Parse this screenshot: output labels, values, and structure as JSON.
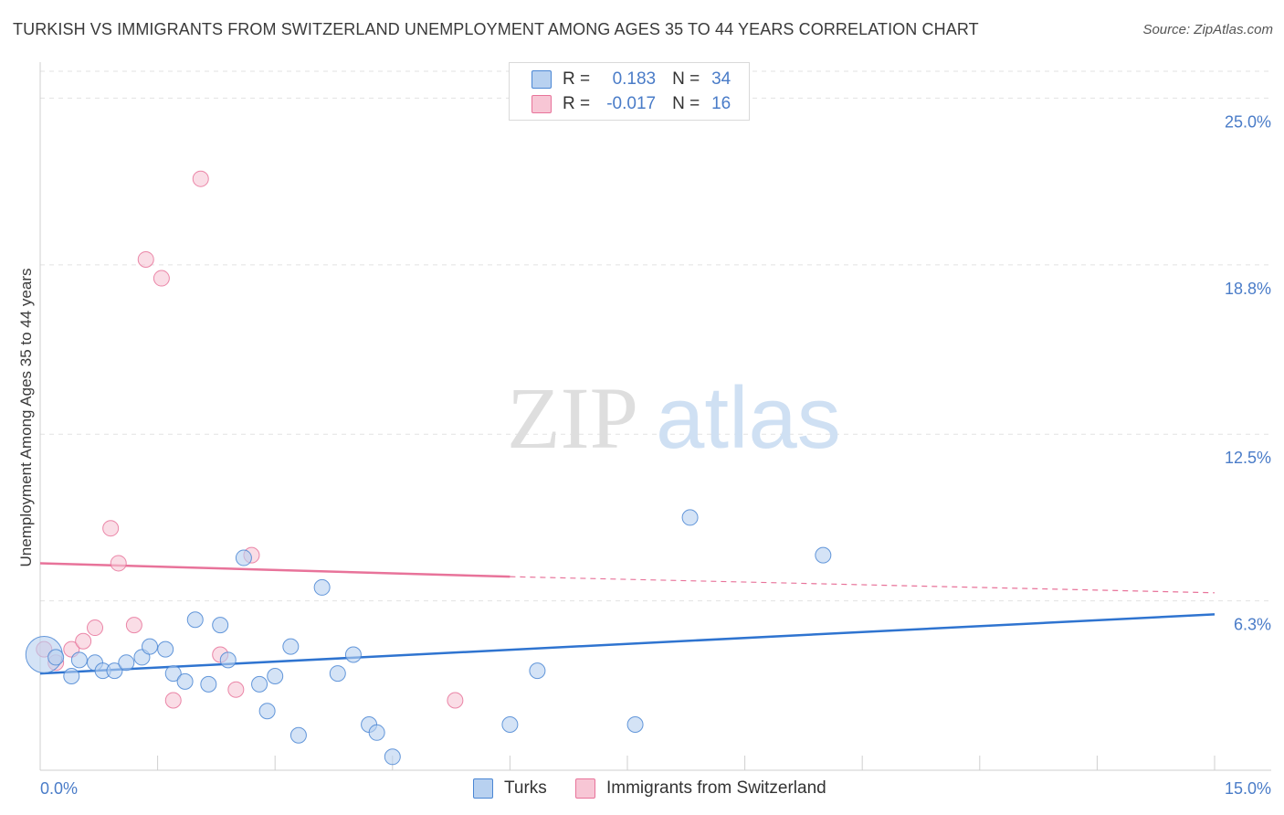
{
  "title": "TURKISH VS IMMIGRANTS FROM SWITZERLAND UNEMPLOYMENT AMONG AGES 35 TO 44 YEARS CORRELATION CHART",
  "source": "Source: ZipAtlas.com",
  "watermark": {
    "zip": "ZIP",
    "atlas": "atlas"
  },
  "colors": {
    "turks": "#4a86d4",
    "turks_fill": "#b8d1f0",
    "swiss": "#e8739a",
    "swiss_fill": "#f7c6d5",
    "accent_text": "#4a7cc8"
  },
  "legend": {
    "rows": [
      {
        "r_label": "R =",
        "r_value": "0.183",
        "n_label": "N =",
        "n_value": "34"
      },
      {
        "r_label": "R =",
        "r_value": "-0.017",
        "n_label": "N =",
        "n_value": "16"
      }
    ]
  },
  "bottom_legend": {
    "turks": "Turks",
    "swiss": "Immigrants from Switzerland"
  },
  "chart_data": {
    "type": "scatter",
    "title": "TURKISH VS IMMIGRANTS FROM SWITZERLAND UNEMPLOYMENT AMONG AGES 35 TO 44 YEARS CORRELATION CHART",
    "xlabel": "",
    "ylabel": "Unemployment Among Ages 35 to 44 years",
    "xlim": [
      0,
      15
    ],
    "ylim": [
      0,
      26
    ],
    "x_tick_labels": [
      "0.0%",
      "15.0%"
    ],
    "y_ticks": [
      6.3,
      12.5,
      18.8,
      25.0
    ],
    "y_tick_labels": [
      "6.3%",
      "12.5%",
      "18.8%",
      "25.0%"
    ],
    "grid": true,
    "series": [
      {
        "name": "Turks",
        "r": 0.183,
        "n": 34,
        "trend": {
          "x": [
            0,
            15
          ],
          "y": [
            3.6,
            5.8
          ]
        },
        "points": [
          {
            "x": 0.05,
            "y": 4.3,
            "big": true
          },
          {
            "x": 0.2,
            "y": 4.2
          },
          {
            "x": 0.4,
            "y": 3.5
          },
          {
            "x": 0.5,
            "y": 4.1
          },
          {
            "x": 0.7,
            "y": 4.0
          },
          {
            "x": 0.8,
            "y": 3.7
          },
          {
            "x": 0.95,
            "y": 3.7
          },
          {
            "x": 1.1,
            "y": 4.0
          },
          {
            "x": 1.3,
            "y": 4.2
          },
          {
            "x": 1.4,
            "y": 4.6
          },
          {
            "x": 1.6,
            "y": 4.5
          },
          {
            "x": 1.7,
            "y": 3.6
          },
          {
            "x": 1.85,
            "y": 3.3
          },
          {
            "x": 1.98,
            "y": 5.6
          },
          {
            "x": 2.15,
            "y": 3.2
          },
          {
            "x": 2.3,
            "y": 5.4
          },
          {
            "x": 2.4,
            "y": 4.1
          },
          {
            "x": 2.6,
            "y": 7.9
          },
          {
            "x": 2.8,
            "y": 3.2
          },
          {
            "x": 2.9,
            "y": 2.2
          },
          {
            "x": 3.0,
            "y": 3.5
          },
          {
            "x": 3.2,
            "y": 4.6
          },
          {
            "x": 3.3,
            "y": 1.3
          },
          {
            "x": 3.6,
            "y": 6.8
          },
          {
            "x": 3.8,
            "y": 3.6
          },
          {
            "x": 4.0,
            "y": 4.3
          },
          {
            "x": 4.2,
            "y": 1.7
          },
          {
            "x": 4.3,
            "y": 1.4
          },
          {
            "x": 4.5,
            "y": 0.5
          },
          {
            "x": 6.0,
            "y": 1.7
          },
          {
            "x": 6.35,
            "y": 3.7
          },
          {
            "x": 7.6,
            "y": 1.7
          },
          {
            "x": 8.3,
            "y": 9.4
          },
          {
            "x": 10.0,
            "y": 8.0
          }
        ]
      },
      {
        "name": "Immigrants from Switzerland",
        "r": -0.017,
        "n": 16,
        "trend": {
          "x": [
            0,
            6.0,
            15
          ],
          "y": [
            7.7,
            7.2,
            6.6
          ],
          "solid_until": 6.0
        },
        "points": [
          {
            "x": 0.05,
            "y": 4.5
          },
          {
            "x": 0.2,
            "y": 4.0
          },
          {
            "x": 0.4,
            "y": 4.5
          },
          {
            "x": 0.55,
            "y": 4.8
          },
          {
            "x": 0.7,
            "y": 5.3
          },
          {
            "x": 0.9,
            "y": 9.0
          },
          {
            "x": 1.0,
            "y": 7.7
          },
          {
            "x": 1.2,
            "y": 5.4
          },
          {
            "x": 1.35,
            "y": 19.0
          },
          {
            "x": 1.55,
            "y": 18.3
          },
          {
            "x": 1.7,
            "y": 2.6
          },
          {
            "x": 2.05,
            "y": 22.0
          },
          {
            "x": 2.3,
            "y": 4.3
          },
          {
            "x": 2.5,
            "y": 3.0
          },
          {
            "x": 2.7,
            "y": 8.0
          },
          {
            "x": 5.3,
            "y": 2.6
          }
        ]
      }
    ]
  }
}
